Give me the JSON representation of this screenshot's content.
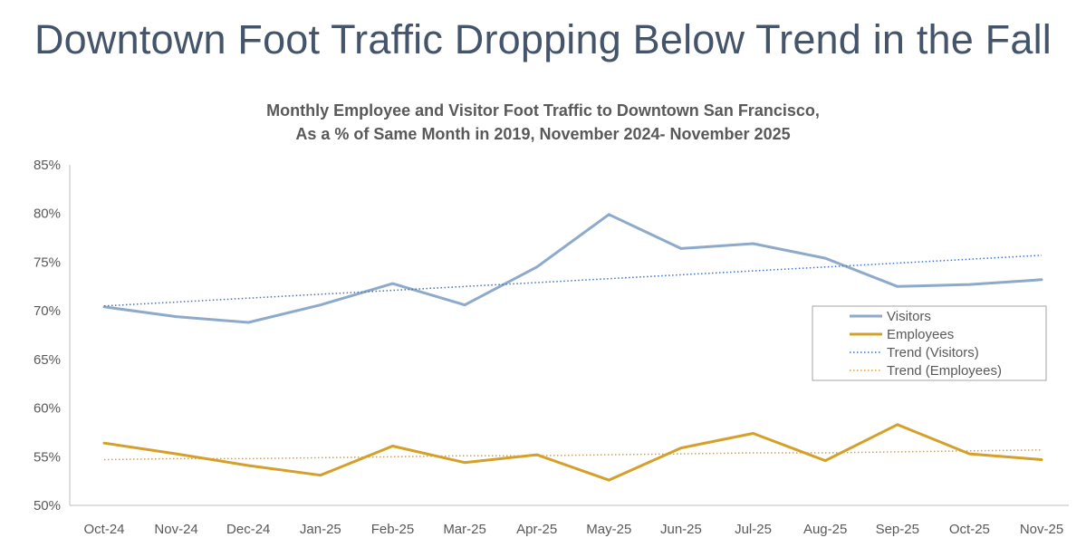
{
  "headline": "Downtown Foot Traffic Dropping Below Trend in the Fall",
  "chart_data": {
    "type": "line",
    "title": "Monthly Employee and Visitor Foot Traffic to Downtown San Francisco,",
    "subtitle": "As a % of Same Month in 2019, November 2024- November 2025",
    "xlabel": "",
    "ylabel": "",
    "ylim": [
      50,
      85
    ],
    "yticks": [
      50,
      55,
      60,
      65,
      70,
      75,
      80,
      85
    ],
    "ytick_labels": [
      "50%",
      "55%",
      "60%",
      "65%",
      "70%",
      "75%",
      "80%",
      "85%"
    ],
    "categories": [
      "Oct-24",
      "Nov-24",
      "Dec-24",
      "Jan-25",
      "Feb-25",
      "Mar-25",
      "Apr-25",
      "May-25",
      "Jun-25",
      "Jul-25",
      "Aug-25",
      "Sep-25",
      "Oct-25",
      "Nov-25"
    ],
    "series": [
      {
        "name": "Visitors",
        "style": "solid",
        "color": "#8eaacb",
        "values": [
          70.4,
          69.4,
          68.8,
          70.6,
          72.8,
          70.6,
          74.5,
          79.9,
          76.4,
          76.9,
          75.4,
          72.5,
          72.7,
          73.2
        ]
      },
      {
        "name": "Employees",
        "style": "solid",
        "color": "#d4a02a",
        "values": [
          56.4,
          55.3,
          54.1,
          53.1,
          56.1,
          54.4,
          55.2,
          52.6,
          55.9,
          57.4,
          54.6,
          58.3,
          55.3,
          54.7
        ]
      },
      {
        "name": "Trend (Visitors)",
        "style": "dotted",
        "color": "#4472c4",
        "values": [
          70.5,
          70.9,
          71.3,
          71.7,
          72.1,
          72.5,
          72.9,
          73.3,
          73.7,
          74.1,
          74.5,
          74.9,
          75.3,
          75.7
        ]
      },
      {
        "name": "Trend (Employees)",
        "style": "dotted",
        "color": "#e59a38",
        "values": [
          54.7,
          54.8,
          54.8,
          54.9,
          55.0,
          55.1,
          55.1,
          55.2,
          55.3,
          55.4,
          55.4,
          55.5,
          55.6,
          55.7
        ]
      }
    ],
    "grid": false,
    "legend_position": "right"
  }
}
